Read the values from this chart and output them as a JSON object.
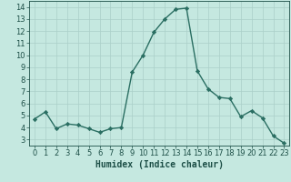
{
  "xlabel": "Humidex (Indice chaleur)",
  "ylabel": "",
  "x": [
    0,
    1,
    2,
    3,
    4,
    5,
    6,
    7,
    8,
    9,
    10,
    11,
    12,
    13,
    14,
    15,
    16,
    17,
    18,
    19,
    20,
    21,
    22,
    23
  ],
  "y": [
    4.7,
    5.3,
    3.9,
    4.3,
    4.2,
    3.9,
    3.6,
    3.9,
    4.0,
    8.6,
    10.0,
    11.9,
    13.0,
    13.8,
    13.9,
    8.7,
    7.2,
    6.5,
    6.4,
    4.9,
    5.4,
    4.8,
    3.3,
    2.7
  ],
  "line_color": "#2a6e62",
  "marker": "D",
  "marker_size": 2.2,
  "background_color": "#c5e8e0",
  "grid_color": "#aacfc8",
  "ylim": [
    2.5,
    14.5
  ],
  "xlim": [
    -0.5,
    23.5
  ],
  "yticks": [
    3,
    4,
    5,
    6,
    7,
    8,
    9,
    10,
    11,
    12,
    13,
    14
  ],
  "xticks": [
    0,
    1,
    2,
    3,
    4,
    5,
    6,
    7,
    8,
    9,
    10,
    11,
    12,
    13,
    14,
    15,
    16,
    17,
    18,
    19,
    20,
    21,
    22,
    23
  ],
  "tick_color": "#1e5048",
  "label_fontsize": 6.0,
  "axis_fontsize": 7.0,
  "linewidth": 1.0
}
